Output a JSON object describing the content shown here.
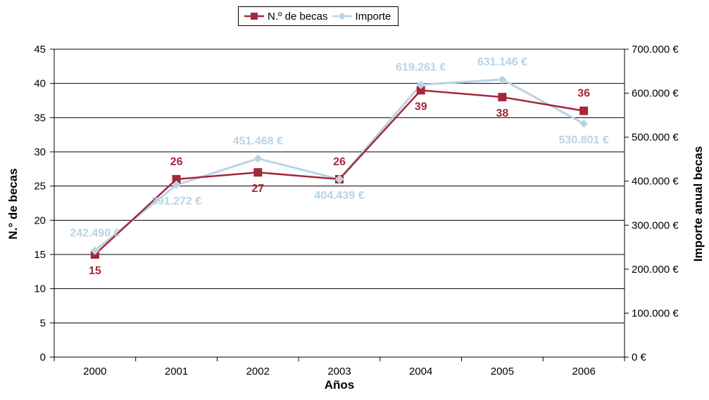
{
  "chart_data": {
    "type": "line",
    "categories": [
      "2000",
      "2001",
      "2002",
      "2003",
      "2004",
      "2005",
      "2006"
    ],
    "xlabel": "Años",
    "ylabel_left": "N.° de becas",
    "ylabel_right": "Importe anual becas",
    "ylim_left": [
      0,
      45
    ],
    "yticks_left": [
      0,
      5,
      10,
      15,
      20,
      25,
      30,
      35,
      40,
      45
    ],
    "ylim_right": [
      0,
      700000
    ],
    "yticks_right": [
      0,
      100000,
      200000,
      300000,
      400000,
      500000,
      600000,
      700000
    ],
    "ytick_labels_right": [
      "0 €",
      "100.000 €",
      "200.000 €",
      "300.000 €",
      "400.000 €",
      "500.000 €",
      "600.000 €",
      "700.000 €"
    ],
    "grid": true,
    "legend_position": "top-center",
    "series": [
      {
        "name": "N.º de becas",
        "axis": "left",
        "color": "#a3283a",
        "marker": "square",
        "values": [
          15,
          26,
          27,
          26,
          39,
          38,
          36
        ],
        "labels": [
          "15",
          "26",
          "27",
          "26",
          "39",
          "38",
          "36"
        ]
      },
      {
        "name": "Importe",
        "axis": "right",
        "color": "#b9d3e6",
        "marker": "diamond",
        "values": [
          242490,
          391272,
          451468,
          404439,
          619261,
          631146,
          530801
        ],
        "labels": [
          "242.490 €",
          "391.272 €",
          "451.468 €",
          "404.439 €",
          "619.261 €",
          "631.146 €",
          "530.801 €"
        ]
      }
    ]
  }
}
